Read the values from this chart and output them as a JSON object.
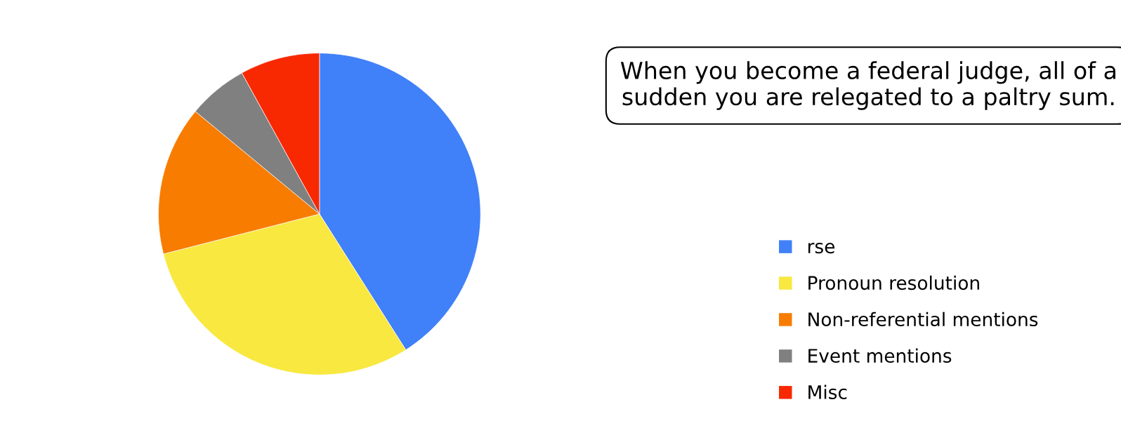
{
  "chart_data": {
    "type": "pie",
    "categories": [
      "rse",
      "Pronoun resolution",
      "Non-referential mentions",
      "Event mentions",
      "Misc"
    ],
    "values": [
      41,
      30,
      15,
      6,
      8
    ],
    "colors": [
      "#4080f8",
      "#f8e840",
      "#f87c00",
      "#808080",
      "#f82800"
    ],
    "legend": "right",
    "annotations": [
      "When you become a federal judge, all of a sudden you are relegated to a paltry sum."
    ]
  }
}
